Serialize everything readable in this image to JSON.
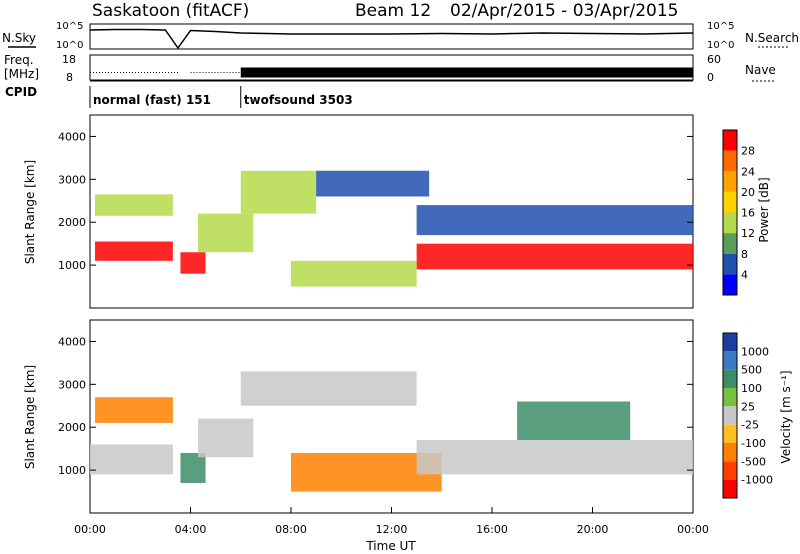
{
  "header": {
    "station": "Saskatoon (fitACF)",
    "beam": "Beam 12",
    "date_range": "02/Apr/2015 - 03/Apr/2015"
  },
  "side_labels": {
    "nsky": "N.Sky",
    "freq_top": "Freq.",
    "freq_bottom": "[MHz]",
    "cpid": "CPID",
    "nsearch": "N.Search",
    "nave": "Nave"
  },
  "cpid_modes": [
    {
      "label": "normal (fast) 151",
      "start_hour": 0.0,
      "end_hour": 6.0
    },
    {
      "label": "twofsound 3503",
      "start_hour": 6.0,
      "end_hour": 24.0
    }
  ],
  "chart_data": [
    {
      "type": "line",
      "name": "noise-panel",
      "left_axis_ticks": [
        "10^5",
        "10^0"
      ],
      "right_axis_ticks": [
        "10^5",
        "10^0"
      ],
      "x": [
        0,
        1,
        2,
        3,
        3.5,
        4,
        5,
        6,
        8,
        10,
        12,
        14,
        16,
        18,
        20,
        22,
        24
      ],
      "series": [
        {
          "values": [
            3.8,
            3.9,
            3.9,
            3.8,
            0.2,
            3.7,
            3.5,
            3.2,
            3.0,
            3.0,
            3.0,
            3.1,
            3.0,
            3.2,
            3.1,
            3.0,
            3.2
          ]
        }
      ],
      "ylim": [
        0,
        5
      ]
    },
    {
      "type": "line",
      "name": "frequency-panel",
      "left_axis_ticks": [
        "18",
        "8"
      ],
      "right_axis_ticks": [
        "60",
        "0"
      ],
      "x": [
        0,
        3.5,
        4,
        6,
        24
      ],
      "series": [
        {
          "values": [
            11,
            11,
            11,
            11,
            11
          ]
        }
      ],
      "ylim": [
        8,
        18
      ]
    },
    {
      "type": "heatmap",
      "name": "power",
      "ylabel": "Slant Range [km]",
      "colorbar_label": "Power [dB]",
      "ylim": [
        0,
        4500
      ],
      "xlim": [
        0,
        24
      ],
      "yticks": [
        1000,
        2000,
        3000,
        4000
      ],
      "colorbar_ticks": [
        "28",
        "24",
        "20",
        "16",
        "12",
        "8",
        "4"
      ],
      "colorbar_colors": [
        "#ff0000",
        "#ff6a00",
        "#ffa200",
        "#ffd200",
        "#b5d94a",
        "#5a9e5a",
        "#2050b0",
        "#0000ff"
      ],
      "bands": [
        {
          "x0": 0.2,
          "x1": 3.3,
          "y0": 1100,
          "y1": 1550,
          "level": "high"
        },
        {
          "x0": 0.2,
          "x1": 3.3,
          "y0": 2150,
          "y1": 2650,
          "level": "mid"
        },
        {
          "x0": 3.6,
          "x1": 4.6,
          "y0": 800,
          "y1": 1300,
          "level": "high"
        },
        {
          "x0": 4.3,
          "x1": 6.5,
          "y0": 1300,
          "y1": 2200,
          "level": "mid"
        },
        {
          "x0": 6.0,
          "x1": 9.0,
          "y0": 2200,
          "y1": 3200,
          "level": "mid"
        },
        {
          "x0": 9.0,
          "x1": 13.5,
          "y0": 2600,
          "y1": 3200,
          "level": "low"
        },
        {
          "x0": 13.0,
          "x1": 24.0,
          "y0": 900,
          "y1": 1500,
          "level": "high"
        },
        {
          "x0": 13.0,
          "x1": 24.0,
          "y0": 1700,
          "y1": 2400,
          "level": "low"
        },
        {
          "x0": 8.0,
          "x1": 13.0,
          "y0": 500,
          "y1": 1100,
          "level": "mid"
        }
      ]
    },
    {
      "type": "heatmap",
      "name": "velocity",
      "ylabel": "Slant Range [km]",
      "colorbar_label": "Velocity [m s⁻¹]",
      "ylim": [
        0,
        4500
      ],
      "xlim": [
        0,
        24
      ],
      "yticks": [
        1000,
        2000,
        3000,
        4000
      ],
      "xticks": [
        "00:00",
        "04:00",
        "08:00",
        "12:00",
        "16:00",
        "20:00",
        "00:00"
      ],
      "xlabel": "Time UT",
      "colorbar_ticks": [
        "1000",
        "500",
        "100",
        "25",
        "-25",
        "-100",
        "-500",
        "-1000"
      ],
      "colorbar_colors": [
        "#1a3fa0",
        "#3a7ac0",
        "#3d8d6a",
        "#7ac040",
        "#c8c8c8",
        "#ffc020",
        "#ff8000",
        "#ff4000",
        "#ff0000"
      ],
      "bands": [
        {
          "x0": 0.2,
          "x1": 3.3,
          "y0": 2100,
          "y1": 2700,
          "level": "orange"
        },
        {
          "x0": 0.0,
          "x1": 3.3,
          "y0": 900,
          "y1": 1600,
          "level": "grey"
        },
        {
          "x0": 3.6,
          "x1": 4.6,
          "y0": 700,
          "y1": 1400,
          "level": "green"
        },
        {
          "x0": 4.3,
          "x1": 6.5,
          "y0": 1300,
          "y1": 2200,
          "level": "grey"
        },
        {
          "x0": 6.0,
          "x1": 13.0,
          "y0": 2500,
          "y1": 3300,
          "level": "grey"
        },
        {
          "x0": 8.0,
          "x1": 14.0,
          "y0": 500,
          "y1": 1400,
          "level": "orange"
        },
        {
          "x0": 13.0,
          "x1": 24.0,
          "y0": 900,
          "y1": 1700,
          "level": "grey"
        },
        {
          "x0": 17.0,
          "x1": 21.5,
          "y0": 1700,
          "y1": 2600,
          "level": "green"
        }
      ]
    }
  ]
}
